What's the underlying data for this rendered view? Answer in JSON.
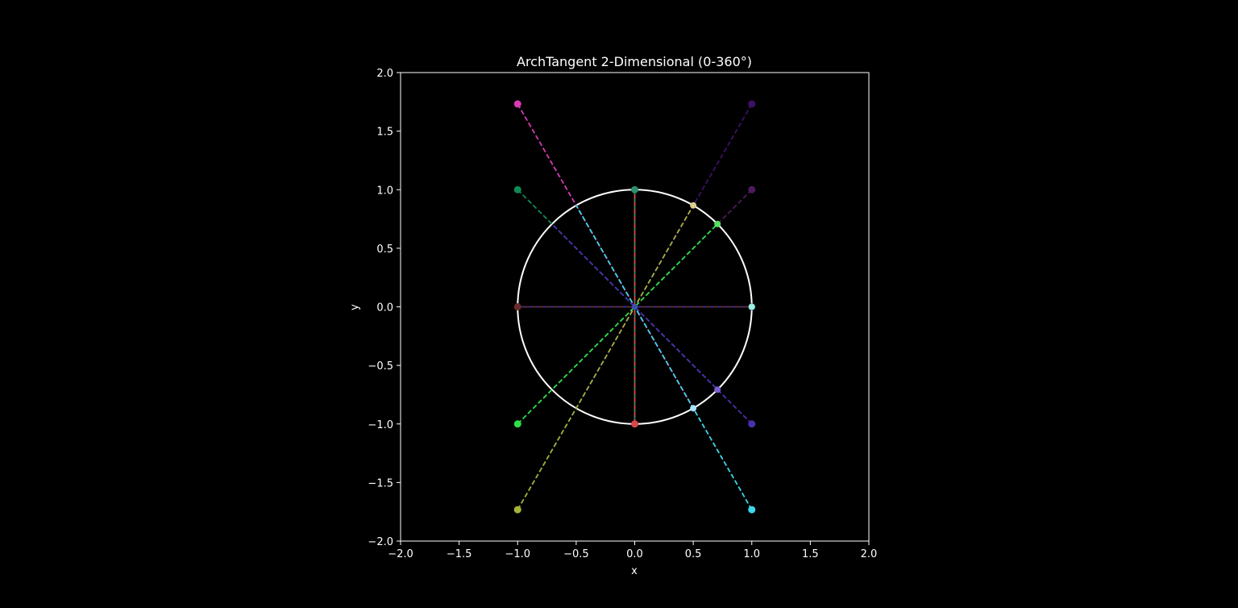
{
  "chart_data": {
    "type": "scatter",
    "title": "ArchTangent 2-Dimensional (0-360°)",
    "xlabel": "x",
    "ylabel": "y",
    "xlim": [
      -2.0,
      2.0
    ],
    "ylim": [
      -2.0,
      2.0
    ],
    "xticks": [
      "−2.0",
      "−1.5",
      "−1.0",
      "−0.5",
      "0.0",
      "0.5",
      "1.0",
      "1.5",
      "2.0"
    ],
    "yticks": [
      "−2.0",
      "−1.5",
      "−1.0",
      "−0.5",
      "0.0",
      "0.5",
      "1.0",
      "1.5",
      "2.0"
    ],
    "xtick_values": [
      -2.0,
      -1.5,
      -1.0,
      -0.5,
      0.0,
      0.5,
      1.0,
      1.5,
      2.0
    ],
    "ytick_values": [
      -2.0,
      -1.5,
      -1.0,
      -0.5,
      0.0,
      0.5,
      1.0,
      1.5,
      2.0
    ],
    "background": "#000000",
    "foreground": "#ffffff",
    "unit_circle": {
      "center": [
        0,
        0
      ],
      "radius": 1,
      "color": "#ffffff"
    },
    "series": [
      {
        "name": "angle-0",
        "point": [
          1.0,
          0.0
        ],
        "circle_point": [
          1.0,
          0.0
        ],
        "color": "#2f36b8"
      },
      {
        "name": "angle-45",
        "point": [
          1.0,
          1.0
        ],
        "circle_point": [
          0.7071,
          0.7071
        ],
        "color": "#4d1a5e"
      },
      {
        "name": "angle-60",
        "point": [
          1.0,
          1.732
        ],
        "circle_point": [
          0.5,
          0.866
        ],
        "color": "#3f0f66"
      },
      {
        "name": "angle-90",
        "point": [
          0.0,
          1.0
        ],
        "circle_point": [
          0.0,
          1.0
        ],
        "color": "#2a8f6a"
      },
      {
        "name": "angle-120",
        "point": [
          -1.0,
          1.732
        ],
        "circle_point": [
          -0.5,
          0.866
        ],
        "color": "#d63ab5"
      },
      {
        "name": "angle-135",
        "point": [
          -1.0,
          1.0
        ],
        "circle_point": [
          -0.7071,
          0.7071
        ],
        "color": "#0f8a55"
      },
      {
        "name": "angle-180",
        "point": [
          -1.0,
          0.0
        ],
        "circle_point": [
          -1.0,
          0.0
        ],
        "color": "#6b2b2b"
      },
      {
        "name": "angle-225",
        "point": [
          -1.0,
          -1.0
        ],
        "circle_point": [
          -0.7071,
          -0.7071
        ],
        "color": "#2de04a"
      },
      {
        "name": "angle-240",
        "point": [
          -1.0,
          -1.732
        ],
        "circle_point": [
          -0.5,
          -0.866
        ],
        "color": "#a6b33a"
      },
      {
        "name": "angle-270",
        "point": [
          0.0,
          -1.0
        ],
        "circle_point": [
          0.0,
          -1.0
        ],
        "color": "#d9474b"
      },
      {
        "name": "angle-300",
        "point": [
          1.0,
          -1.732
        ],
        "circle_point": [
          0.5,
          -0.866
        ],
        "color": "#3cd7e8"
      },
      {
        "name": "angle-315",
        "point": [
          1.0,
          -1.0
        ],
        "circle_point": [
          0.7071,
          -0.7071
        ],
        "color": "#4b2fb0"
      }
    ],
    "circle_markers": [
      {
        "name": "cm-0",
        "point": [
          1.0,
          0.0
        ],
        "color": "#9ef0d0"
      },
      {
        "name": "cm-45",
        "point": [
          0.7071,
          0.7071
        ],
        "color": "#56e060"
      },
      {
        "name": "cm-60",
        "point": [
          0.5,
          0.866
        ],
        "color": "#d8d08a"
      },
      {
        "name": "cm-300",
        "point": [
          0.5,
          -0.866
        ],
        "color": "#a8e0ff"
      },
      {
        "name": "cm-315",
        "point": [
          0.7071,
          -0.7071
        ],
        "color": "#7a5fd0"
      }
    ]
  }
}
